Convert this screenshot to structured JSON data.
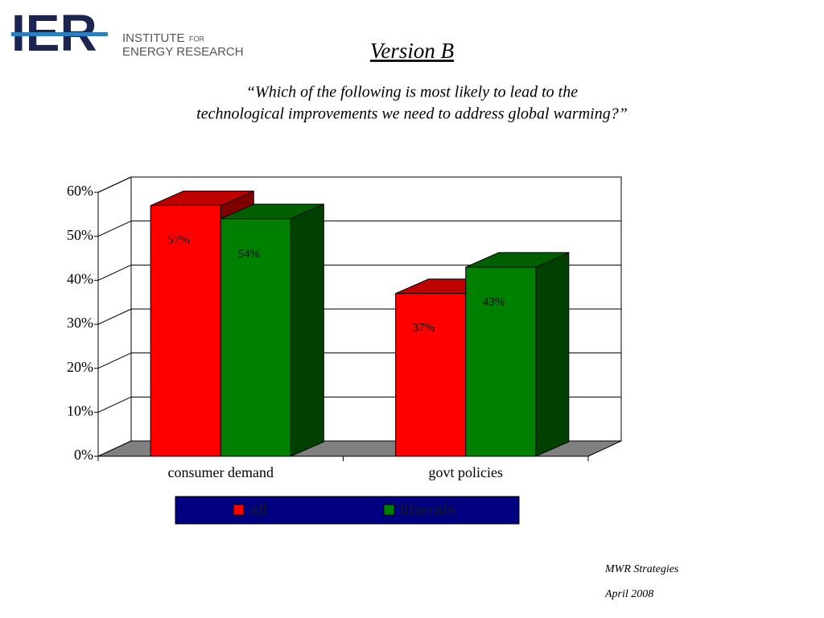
{
  "logo": {
    "mark": "IER",
    "line1": "INSTITUTE",
    "line1_small": "FOR",
    "line2": "ENERGY RESEARCH"
  },
  "chart_data": {
    "type": "bar3d",
    "title": "Version B",
    "subtitle": [
      "“Which of the following is most likely to lead to the",
      "technological improvements we need to address global warming?”"
    ],
    "categories": [
      "consumer demand",
      "govt policies"
    ],
    "series": [
      {
        "name": "all",
        "color": "#ff0000",
        "values": [
          57,
          37
        ],
        "value_labels": [
          "57%",
          "37%"
        ]
      },
      {
        "name": "liberals",
        "color": "#008000",
        "values": [
          54,
          43
        ],
        "value_labels": [
          "54%",
          "43%"
        ]
      }
    ],
    "ylim": [
      0,
      60
    ],
    "yticks": [
      {
        "value": 0,
        "label": "0%"
      },
      {
        "value": 10,
        "label": "10%"
      },
      {
        "value": 20,
        "label": "20%"
      },
      {
        "value": 30,
        "label": "30%"
      },
      {
        "value": 40,
        "label": "40%"
      },
      {
        "value": 50,
        "label": "50%"
      },
      {
        "value": 60,
        "label": "60%"
      }
    ],
    "grid": true,
    "legend": "bottom"
  },
  "footer": {
    "source": "MWR Strategies",
    "date": "April 2008"
  }
}
